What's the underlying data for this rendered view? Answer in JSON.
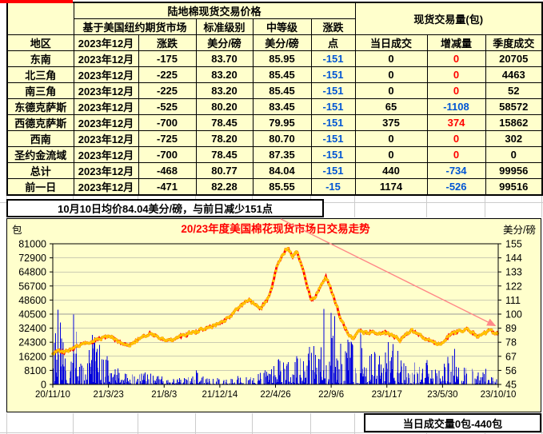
{
  "table": {
    "title": "陆地棉现货交易价格",
    "volume_title": "现货交易量(包)",
    "group_futures": "基于美国纽约期货市场",
    "group_standard": "标准级别",
    "group_medium": "中等级",
    "group_change": "涨跌",
    "col_region": "地区",
    "col_month": "2023年12月",
    "col_change": "涨跌",
    "col_unit_std": "美分/磅",
    "col_unit_mid": "美分/磅",
    "col_points": "点",
    "col_today": "当日成交",
    "col_delta": "增减量",
    "col_quarter": "季度成交",
    "rows": [
      {
        "region": "东南",
        "month": "2023年12月",
        "change": "-175",
        "std": "83.70",
        "mid": "85.95",
        "pts": "-151",
        "today": "0",
        "delta": "0",
        "quarter": "20705"
      },
      {
        "region": "北三角",
        "month": "2023年12月",
        "change": "-225",
        "std": "83.20",
        "mid": "85.45",
        "pts": "-151",
        "today": "0",
        "delta": "0",
        "quarter": "4463"
      },
      {
        "region": "南三角",
        "month": "2023年12月",
        "change": "-225",
        "std": "83.20",
        "mid": "85.45",
        "pts": "-151",
        "today": "0",
        "delta": "0",
        "quarter": "52"
      },
      {
        "region": "东德克萨斯",
        "month": "2023年12月",
        "change": "-525",
        "std": "80.20",
        "mid": "83.45",
        "pts": "-151",
        "today": "65",
        "delta": "-1108",
        "quarter": "58572"
      },
      {
        "region": "西德克萨斯",
        "month": "2023年12月",
        "change": "-700",
        "std": "78.45",
        "mid": "79.95",
        "pts": "-151",
        "today": "375",
        "delta": "374",
        "quarter": "15862"
      },
      {
        "region": "西南",
        "month": "2023年12月",
        "change": "-725",
        "std": "78.20",
        "mid": "80.70",
        "pts": "-151",
        "today": "0",
        "delta": "0",
        "quarter": "302"
      },
      {
        "region": "圣约金流域",
        "month": "2023年12月",
        "change": "-700",
        "std": "78.45",
        "mid": "87.35",
        "pts": "-151",
        "today": "0",
        "delta": "0",
        "quarter": "0"
      },
      {
        "region": "总计",
        "month": "2023年12月",
        "change": "-468",
        "std": "80.77",
        "mid": "84.04",
        "pts": "-151",
        "today": "440",
        "delta": "-734",
        "quarter": "99956"
      },
      {
        "region": "前一日",
        "month": "2023年12月",
        "change": "-471",
        "std": "82.28",
        "mid": "85.55",
        "pts": "-15",
        "today": "1174",
        "delta": "-526",
        "quarter": "99516"
      }
    ]
  },
  "notes": {
    "top": "10月10日均价84.04美分/磅，与前日减少151点",
    "bottom": "当日成交量0包-440包"
  },
  "chart_data": {
    "type": "line+bar",
    "title": "20/23年度美国棉花现货市场日交易走势",
    "left_axis": {
      "label": "包",
      "min": 0,
      "max": 81000,
      "ticks": [
        81000,
        72900,
        64800,
        56700,
        48600,
        40500,
        32400,
        24300,
        16200,
        8100,
        0
      ],
      "series_name": "daily traded volume (blue bars)"
    },
    "right_axis": {
      "label": "美分/磅",
      "min": 45,
      "max": 155,
      "ticks": [
        155,
        144,
        133,
        122,
        111,
        100,
        89,
        78,
        67,
        56,
        45
      ],
      "series_name": "average spot price (red line, yellow markers)"
    },
    "x_ticks": [
      "20/11/10",
      "21/3/23",
      "21/8/3",
      "21/12/14",
      "22/4/26",
      "22/9/6",
      "23/1/17",
      "23/5/30",
      "23/10/10"
    ],
    "n_points": 740,
    "price_anchors": [
      [
        0,
        69
      ],
      [
        0.012,
        71
      ],
      [
        0.025,
        70
      ],
      [
        0.045,
        73
      ],
      [
        0.065,
        76
      ],
      [
        0.085,
        78
      ],
      [
        0.1,
        80
      ],
      [
        0.118,
        82
      ],
      [
        0.13,
        83
      ],
      [
        0.142,
        80
      ],
      [
        0.155,
        77
      ],
      [
        0.168,
        76
      ],
      [
        0.182,
        78
      ],
      [
        0.2,
        82
      ],
      [
        0.218,
        85
      ],
      [
        0.232,
        83
      ],
      [
        0.248,
        80
      ],
      [
        0.262,
        79
      ],
      [
        0.282,
        82
      ],
      [
        0.3,
        84
      ],
      [
        0.318,
        86
      ],
      [
        0.335,
        88
      ],
      [
        0.352,
        90
      ],
      [
        0.368,
        92
      ],
      [
        0.385,
        95
      ],
      [
        0.4,
        99
      ],
      [
        0.415,
        104
      ],
      [
        0.43,
        109
      ],
      [
        0.442,
        111
      ],
      [
        0.455,
        107
      ],
      [
        0.468,
        105
      ],
      [
        0.48,
        110
      ],
      [
        0.492,
        122
      ],
      [
        0.503,
        136
      ],
      [
        0.515,
        146
      ],
      [
        0.527,
        152
      ],
      [
        0.538,
        145
      ],
      [
        0.548,
        149
      ],
      [
        0.558,
        138
      ],
      [
        0.565,
        131
      ],
      [
        0.572,
        121
      ],
      [
        0.58,
        111
      ],
      [
        0.59,
        113
      ],
      [
        0.602,
        123
      ],
      [
        0.613,
        129
      ],
      [
        0.623,
        121
      ],
      [
        0.635,
        108
      ],
      [
        0.648,
        95
      ],
      [
        0.66,
        87
      ],
      [
        0.672,
        81
      ],
      [
        0.682,
        84
      ],
      [
        0.692,
        87
      ],
      [
        0.705,
        85
      ],
      [
        0.718,
        87
      ],
      [
        0.73,
        84
      ],
      [
        0.742,
        86
      ],
      [
        0.755,
        84
      ],
      [
        0.768,
        82
      ],
      [
        0.78,
        80
      ],
      [
        0.792,
        84
      ],
      [
        0.805,
        87
      ],
      [
        0.818,
        85
      ],
      [
        0.83,
        82
      ],
      [
        0.842,
        80
      ],
      [
        0.855,
        78
      ],
      [
        0.868,
        77
      ],
      [
        0.88,
        80
      ],
      [
        0.893,
        84
      ],
      [
        0.905,
        86
      ],
      [
        0.918,
        87
      ],
      [
        0.93,
        88
      ],
      [
        0.942,
        86
      ],
      [
        0.955,
        83
      ],
      [
        0.968,
        85
      ],
      [
        0.98,
        87
      ],
      [
        0.99,
        86
      ],
      [
        1,
        85
      ]
    ],
    "volume_envelope_anchors": [
      [
        0,
        20000
      ],
      [
        0.01,
        46000
      ],
      [
        0.03,
        34000
      ],
      [
        0.05,
        44000
      ],
      [
        0.07,
        26000
      ],
      [
        0.09,
        32000
      ],
      [
        0.11,
        20000
      ],
      [
        0.13,
        14000
      ],
      [
        0.15,
        9000
      ],
      [
        0.18,
        6000
      ],
      [
        0.21,
        7000
      ],
      [
        0.24,
        5000
      ],
      [
        0.27,
        4500
      ],
      [
        0.3,
        4000
      ],
      [
        0.32,
        10000
      ],
      [
        0.34,
        4000
      ],
      [
        0.37,
        3500
      ],
      [
        0.4,
        4500
      ],
      [
        0.43,
        5500
      ],
      [
        0.46,
        7000
      ],
      [
        0.49,
        10000
      ],
      [
        0.52,
        16000
      ],
      [
        0.54,
        12000
      ],
      [
        0.56,
        22000
      ],
      [
        0.58,
        30000
      ],
      [
        0.6,
        44000
      ],
      [
        0.62,
        48000
      ],
      [
        0.64,
        38000
      ],
      [
        0.66,
        30000
      ],
      [
        0.68,
        22000
      ],
      [
        0.7,
        32000
      ],
      [
        0.72,
        24000
      ],
      [
        0.74,
        18000
      ],
      [
        0.76,
        30000
      ],
      [
        0.78,
        18000
      ],
      [
        0.8,
        13000
      ],
      [
        0.82,
        11000
      ],
      [
        0.84,
        15000
      ],
      [
        0.86,
        9000
      ],
      [
        0.88,
        13000
      ],
      [
        0.9,
        23000
      ],
      [
        0.92,
        11000
      ],
      [
        0.94,
        9000
      ],
      [
        0.96,
        13000
      ],
      [
        0.98,
        7000
      ],
      [
        1,
        4000
      ]
    ],
    "trend_arrow": {
      "from_xfrac_price": [
        0.512,
        175
      ],
      "to_xfrac_price": [
        0.993,
        91
      ],
      "color": "#FF8888"
    },
    "colors": {
      "plot_bg": "#FFFFCC",
      "bar": "#0000DD",
      "line": "#FF0000",
      "marker_fill": "#FFD400",
      "marker_edge": "#FF8C00",
      "grid": "#999999",
      "title": "#FF0000",
      "axis_text": "#000000"
    },
    "legend": "none",
    "grid": "horizontal only"
  },
  "layout_colors": {
    "sheet_gridline": "#CCCCCC",
    "cell_fill": "#FFFFCC",
    "negative_text": "#0055D4",
    "positive_text": "#FF0000",
    "top_marker": "#FF0000"
  }
}
